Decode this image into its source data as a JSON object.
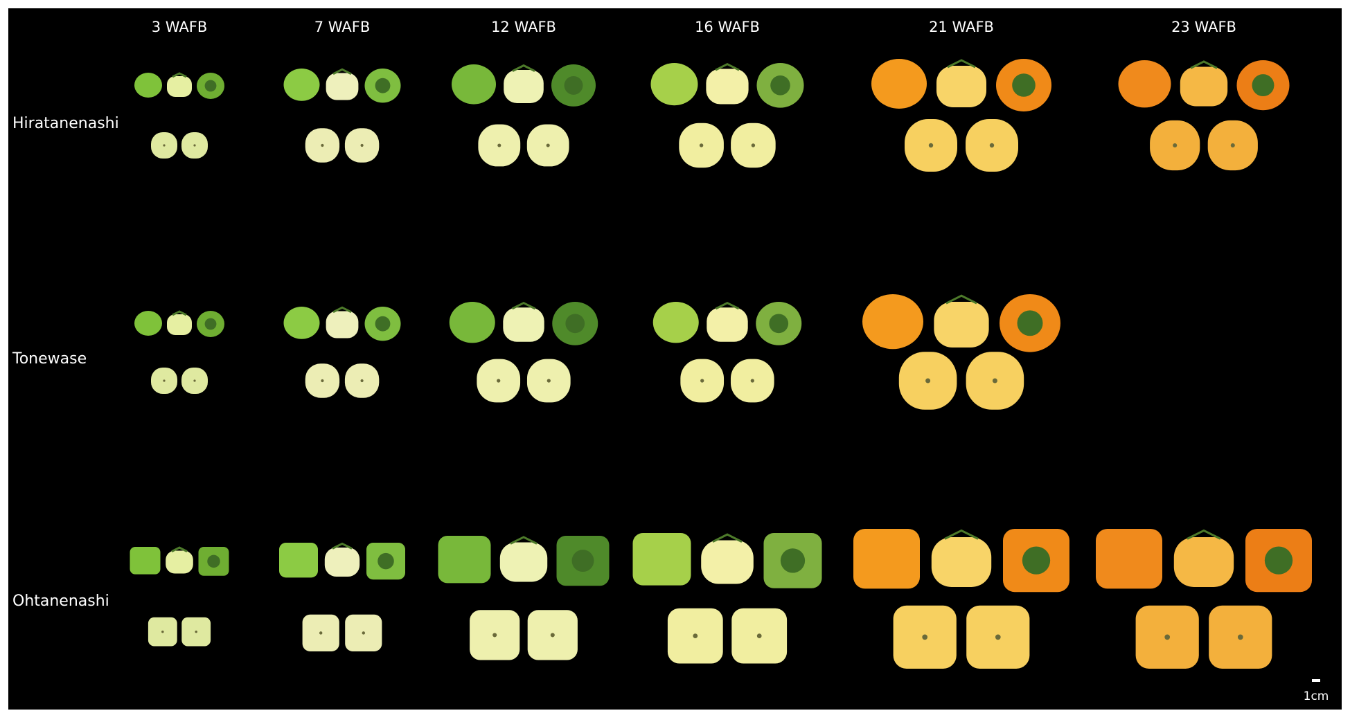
{
  "columns": [
    "3 WAFB",
    "7 WAFB",
    "12 WAFB",
    "16 WAFB",
    "21 WAFB",
    "23 WAFB"
  ],
  "rows": [
    "Hiratanenashi",
    "Tonewase",
    "Ohtanenashi"
  ],
  "scale_bar": {
    "label": "1cm"
  }
}
